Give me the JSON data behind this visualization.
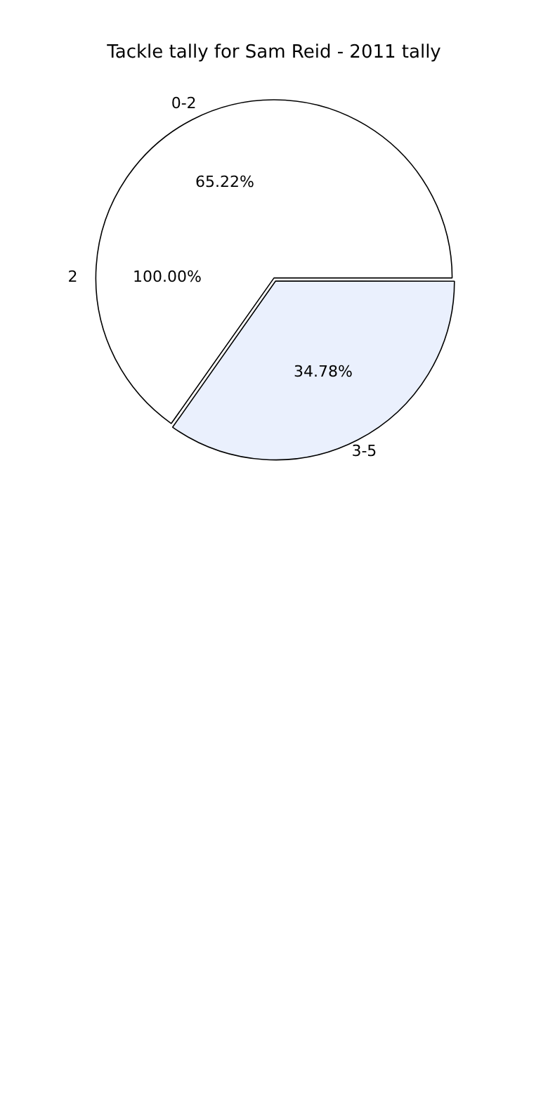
{
  "chart_data": {
    "type": "pie",
    "title": "Tackle tally for Sam Reid - 2011 tally",
    "categories": [
      "0-2",
      "3-5"
    ],
    "values": [
      65.22,
      34.78
    ],
    "colors": [
      "#ffffff",
      "#eaf0fd"
    ],
    "value_labels": [
      "65.22%",
      "34.78%"
    ],
    "legend": false,
    "annotations": [
      "2",
      "100.00%"
    ]
  }
}
